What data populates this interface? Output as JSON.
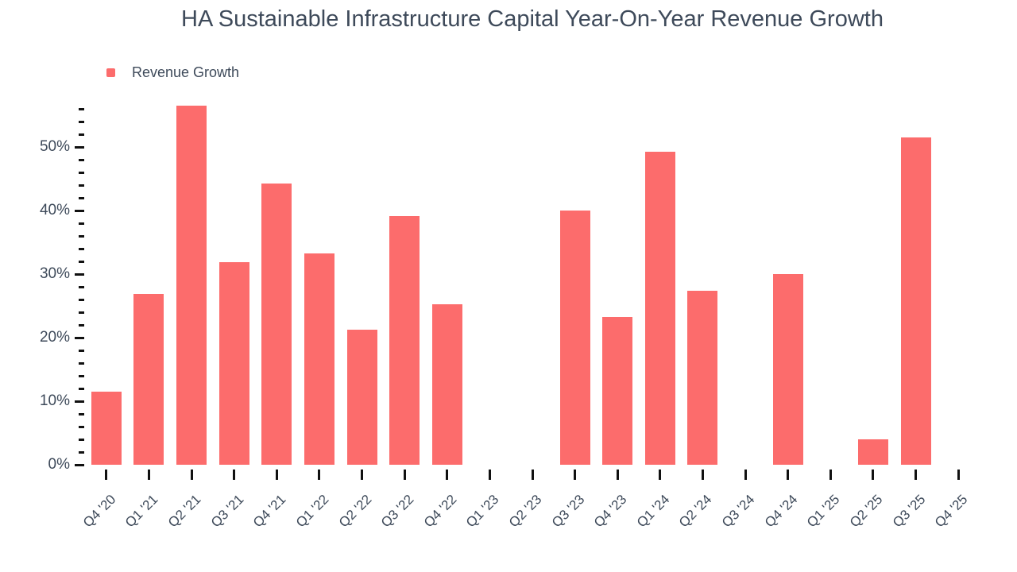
{
  "page": {
    "background": "#ffffff",
    "text_color": "#3E4A5A",
    "tick_color": "#111111"
  },
  "chart_data": {
    "type": "bar",
    "title": "HA Sustainable Infrastructure Capital Year-On-Year Revenue Growth",
    "legend": [
      {
        "label": "Revenue Growth",
        "color": "#FC6C6C"
      }
    ],
    "legend_position": "top-left",
    "categories": [
      "Q4 '20",
      "Q1 '21",
      "Q2 '21",
      "Q3 '21",
      "Q4 '21",
      "Q1 '22",
      "Q2 '22",
      "Q3 '22",
      "Q4 '22",
      "Q1 '23",
      "Q2 '23",
      "Q3 '23",
      "Q4 '23",
      "Q1 '24",
      "Q2 '24",
      "Q3 '24",
      "Q4 '24",
      "Q1 '25",
      "Q2 '25",
      "Q3 '25",
      "Q4 '25"
    ],
    "series": [
      {
        "name": "Revenue Growth",
        "values": [
          11.5,
          26.9,
          56.5,
          31.9,
          44.3,
          33.3,
          21.3,
          39.1,
          25.3,
          null,
          null,
          40.0,
          23.2,
          49.2,
          27.4,
          null,
          30.0,
          null,
          4.0,
          51.5,
          null
        ]
      }
    ],
    "unit": "%",
    "xlabel": "",
    "ylabel": "",
    "ylim": [
      0,
      56.5
    ],
    "y_major_tick_labels": [
      "0%",
      "10%",
      "20%",
      "30%",
      "40%",
      "50%"
    ],
    "y_major_tick_step": 10,
    "y_minor_tick_step": 2,
    "y_max_tick": 56,
    "grid": false,
    "bar_color": "#FC6C6C"
  }
}
